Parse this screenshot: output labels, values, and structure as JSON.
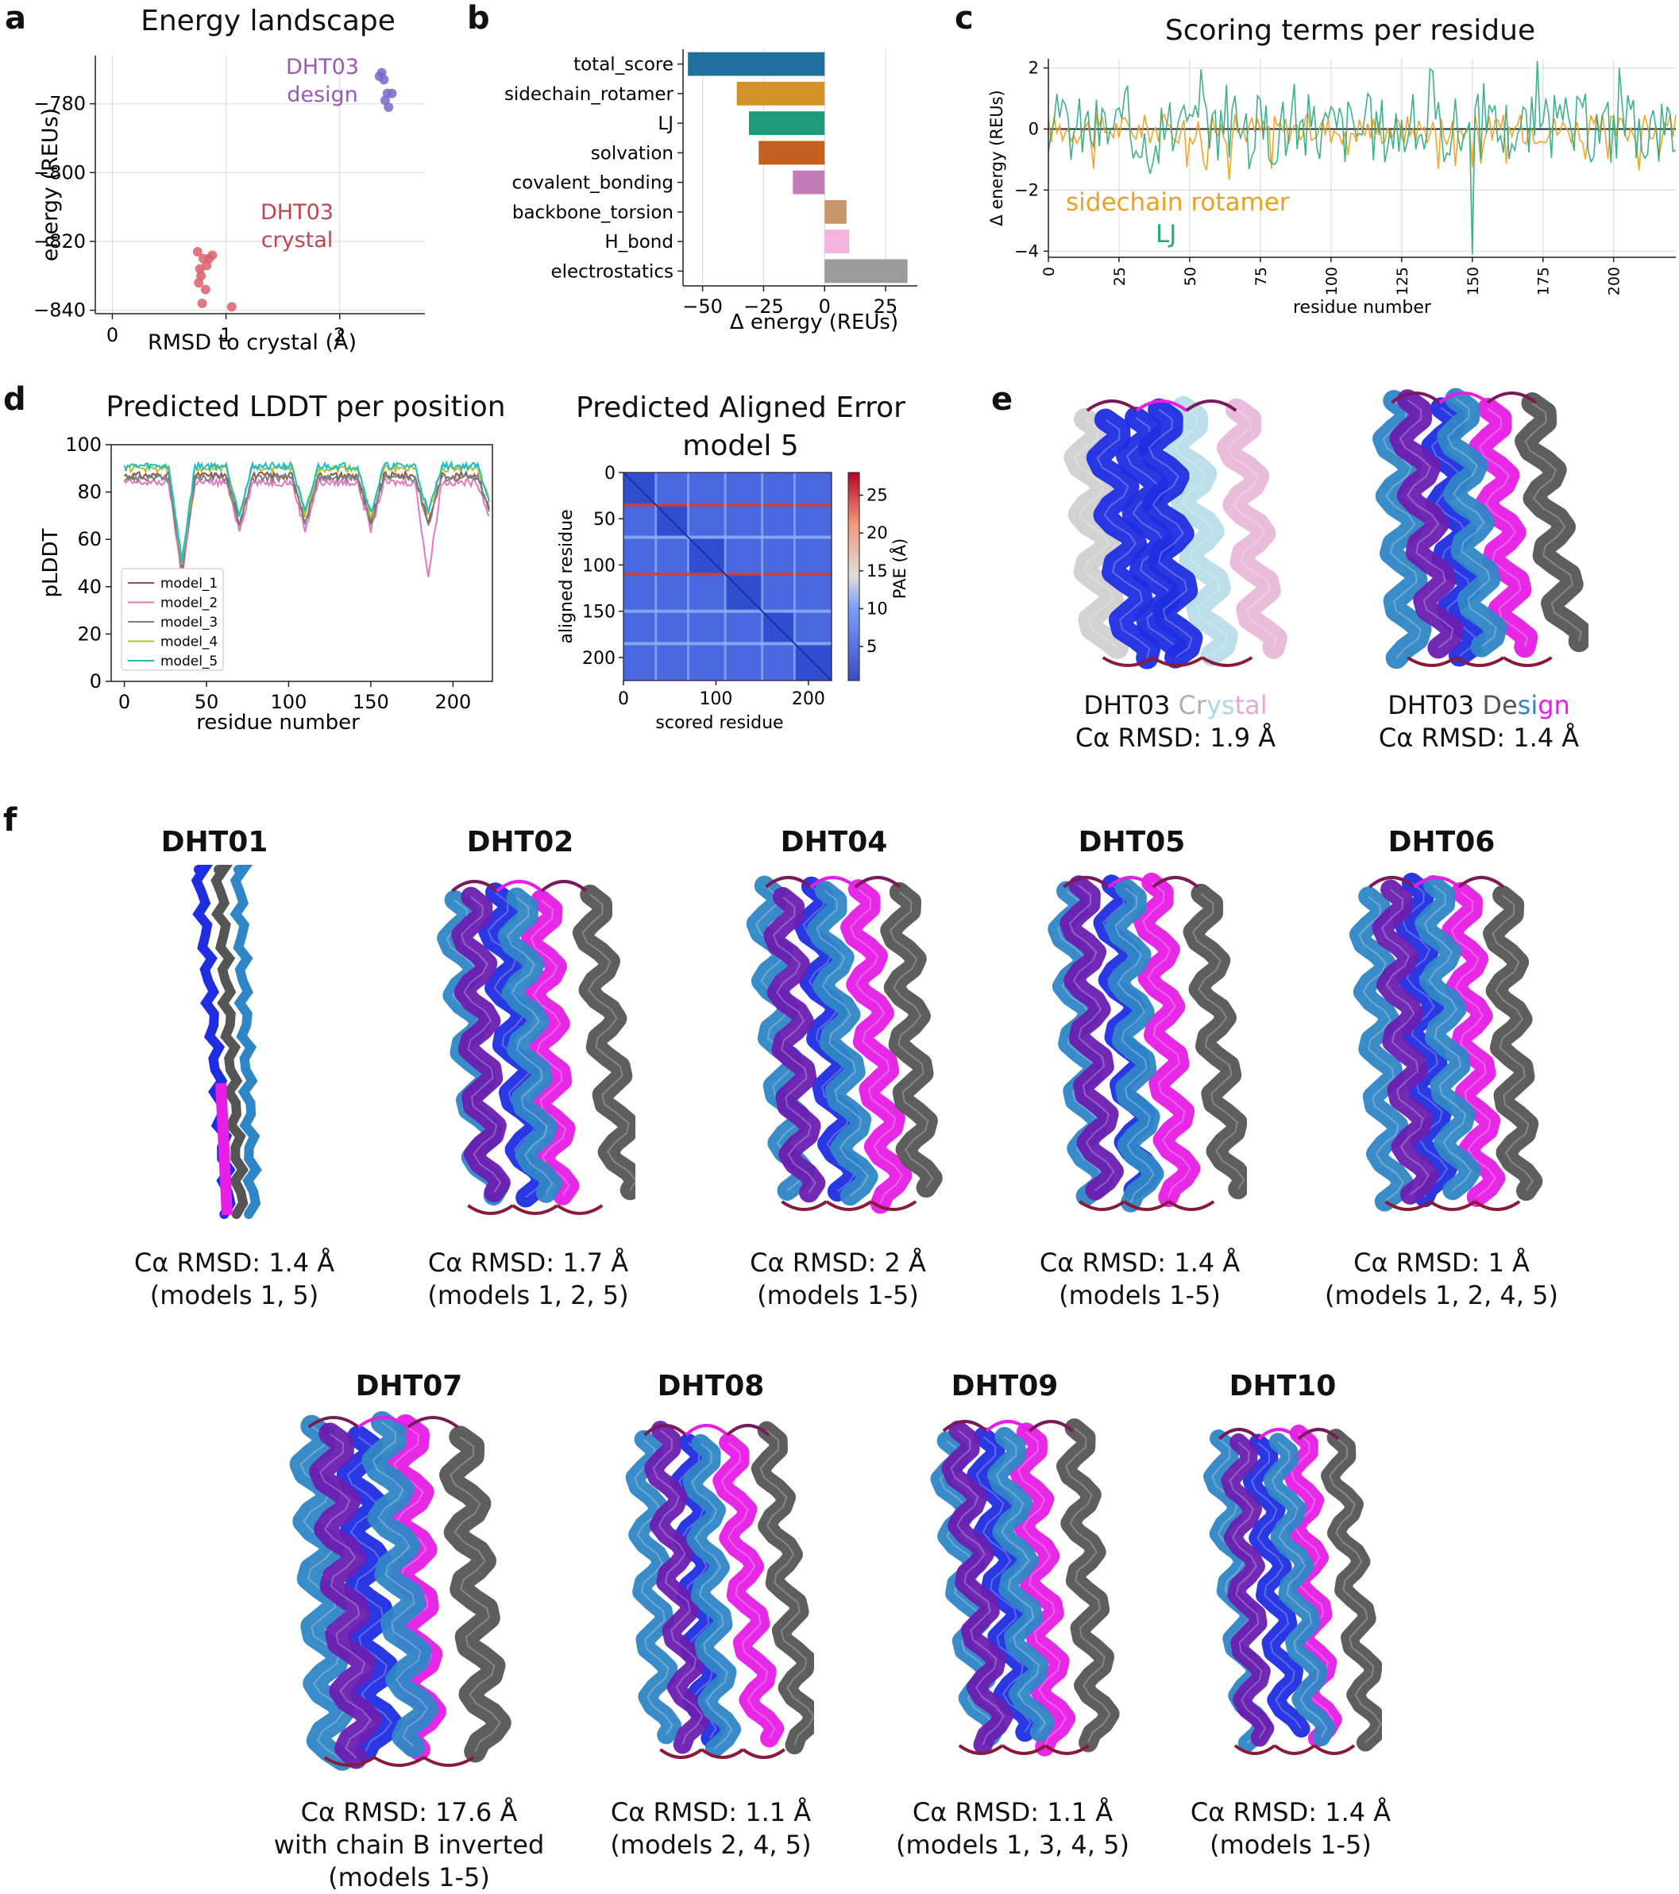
{
  "panel_labels": {
    "a": "a",
    "b": "b",
    "c": "c",
    "d": "d",
    "e": "e",
    "f": "f"
  },
  "colors": {
    "chain_a": "#1e2de0",
    "chain_b": "#2f86c6",
    "chain_c": "#e61ee6",
    "chain_d": "#555555",
    "design_cluster": "#7b68c8",
    "crystal_cluster": "#d9606a",
    "sidechain_line": "#f0a020",
    "lj_line": "#2aa882"
  },
  "chart_data": [
    {
      "panel": "a",
      "type": "scatter",
      "title": "Energy landscape",
      "xlabel": "RMSD to crystal (Å)",
      "ylabel": "energy (REUs)",
      "xlim": [
        -0.15,
        2.75
      ],
      "ylim": [
        -841,
        -766
      ],
      "xticks": [
        0,
        1,
        2
      ],
      "yticks": [
        -780,
        -800,
        -820,
        -840
      ],
      "ytick_labels": [
        "−780",
        "−800",
        "−820",
        "−840"
      ],
      "grid": true,
      "annotations": [
        {
          "text": "DHT03",
          "text2": "design",
          "color": "#9b59b6"
        },
        {
          "text": "DHT03",
          "text2": "crystal",
          "color": "#c0454f"
        }
      ],
      "series": [
        {
          "color": "#7b68c8",
          "points": [
            [
              2.35,
              -772
            ],
            [
              2.39,
              -773
            ],
            [
              2.42,
              -777
            ],
            [
              2.46,
              -777
            ],
            [
              2.4,
              -779
            ],
            [
              2.43,
              -781
            ],
            [
              2.37,
              -771
            ]
          ]
        },
        {
          "color": "#d9606a",
          "points": [
            [
              0.75,
              -823
            ],
            [
              0.8,
              -825
            ],
            [
              0.85,
              -825
            ],
            [
              0.77,
              -828
            ],
            [
              0.83,
              -827
            ],
            [
              0.78,
              -830
            ],
            [
              0.76,
              -832
            ],
            [
              0.82,
              -834
            ],
            [
              0.79,
              -838
            ],
            [
              1.05,
              -839
            ],
            [
              0.88,
              -824
            ]
          ]
        }
      ]
    },
    {
      "panel": "b",
      "type": "bar",
      "orientation": "horizontal",
      "xlabel": "Δ energy (REUs)",
      "xlim": [
        -58,
        38
      ],
      "xticks": [
        -50,
        -25,
        0,
        25
      ],
      "xtick_labels": [
        "−50",
        "−25",
        "0",
        "25"
      ],
      "grid": true,
      "categories": [
        "total_score",
        "sidechain_rotamer",
        "LJ",
        "solvation",
        "covalent_bonding",
        "backbone_torsion",
        "H_bond",
        "electrostatics"
      ],
      "values": [
        -56,
        -36,
        -31,
        -27,
        -13,
        9,
        10,
        34
      ],
      "bar_colors": [
        "#1f6f9f",
        "#d4922a",
        "#1f9a7a",
        "#c5601e",
        "#c17cb8",
        "#c9956a",
        "#f2b3dc",
        "#9b9b9b"
      ]
    },
    {
      "panel": "c",
      "type": "line",
      "title": "Scoring terms per residue",
      "xlabel": "residue number",
      "ylabel": "Δ energy (REUs)",
      "xlim": [
        0,
        222
      ],
      "ylim": [
        -4.2,
        2.3
      ],
      "xticks": [
        0,
        25,
        50,
        75,
        100,
        125,
        150,
        175,
        200
      ],
      "yticks": [
        2,
        0,
        -2,
        -4
      ],
      "ytick_labels": [
        "2",
        "0",
        "−2",
        "−4"
      ],
      "grid": true,
      "series": [
        {
          "name": "sidechain rotamer",
          "color": "#f0a020"
        },
        {
          "name": "LJ",
          "color": "#2aa882"
        }
      ]
    },
    {
      "panel": "d1",
      "type": "line",
      "title": "Predicted LDDT per position",
      "xlabel": "residue number",
      "ylabel": "pLDDT",
      "xlim": [
        -8,
        224
      ],
      "ylim": [
        0,
        100
      ],
      "xticks": [
        0,
        50,
        100,
        150,
        200
      ],
      "yticks": [
        0,
        20,
        40,
        60,
        80,
        100
      ],
      "legend_placement": "lower-left",
      "series": [
        {
          "name": "model_1",
          "color": "#8c564b"
        },
        {
          "name": "model_2",
          "color": "#e377c2"
        },
        {
          "name": "model_3",
          "color": "#7f7f7f"
        },
        {
          "name": "model_4",
          "color": "#bcbd22"
        },
        {
          "name": "model_5",
          "color": "#17becf"
        }
      ]
    },
    {
      "panel": "d2",
      "type": "heatmap",
      "title": "Predicted Aligned Error",
      "title2": "model 5",
      "xlabel": "scored residue",
      "ylabel": "aligned residue",
      "xticks": [
        0,
        100,
        200
      ],
      "yticks": [
        0,
        50,
        100,
        150,
        200
      ],
      "range": [
        0,
        225
      ],
      "colorbar_label": "PAE (Å)",
      "colorbar_ticks": [
        5,
        10,
        15,
        20,
        25
      ],
      "colorbar_range": [
        0.5,
        28
      ]
    }
  ],
  "panel_e": {
    "crystal_caption_prefix": "DHT03 ",
    "crystal_word_letters": [
      "C",
      "r",
      "y",
      "s",
      "t",
      "a",
      "l"
    ],
    "crystal_letter_colors": [
      "#b0b0b0",
      "#b0b0b0",
      "#a8d8e8",
      "#a8d8e8",
      "#e8a8d8",
      "#e8a8d8",
      "#e8a8d8"
    ],
    "crystal_rmsd": "Cα RMSD: 1.9 Å",
    "design_caption_prefix": "DHT03 ",
    "design_word_letters": [
      "D",
      "e",
      "s",
      "i",
      "g",
      "n"
    ],
    "design_letter_colors": [
      "#555555",
      "#555555",
      "#2f86c6",
      "#2f86c6",
      "#e61ee6",
      "#e61ee6"
    ],
    "design_rmsd": "Cα RMSD: 1.4 Å"
  },
  "panel_f": [
    {
      "name": "DHT01",
      "rmsd": "Cα RMSD: 1.4 Å",
      "models": "(models 1, 5)"
    },
    {
      "name": "DHT02",
      "rmsd": "Cα RMSD: 1.7 Å",
      "models": "(models 1, 2, 5)"
    },
    {
      "name": "DHT04",
      "rmsd": "Cα RMSD: 2 Å",
      "models": "(models 1-5)"
    },
    {
      "name": "DHT05",
      "rmsd": "Cα RMSD: 1.4 Å",
      "models": "(models 1-5)"
    },
    {
      "name": "DHT06",
      "rmsd": "Cα RMSD: 1 Å",
      "models": "(models 1, 2, 4, 5)"
    },
    {
      "name": "DHT07",
      "rmsd": "Cα RMSD: 17.6 Å",
      "extra": "with chain B inverted",
      "models": "(models 1-5)"
    },
    {
      "name": "DHT08",
      "rmsd": "Cα RMSD: 1.1 Å",
      "models": "(models 2, 4, 5)"
    },
    {
      "name": "DHT09",
      "rmsd": "Cα RMSD: 1.1 Å",
      "models": "(models 1, 3, 4, 5)"
    },
    {
      "name": "DHT10",
      "rmsd": "Cα RMSD: 1.4 Å",
      "models": "(models 1-5)"
    }
  ]
}
